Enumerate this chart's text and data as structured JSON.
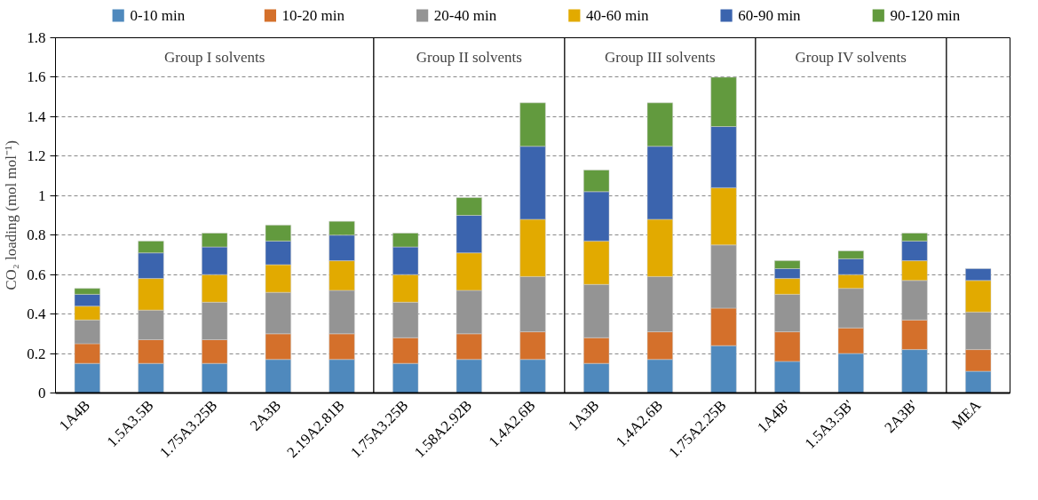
{
  "chart_data": {
    "type": "bar",
    "stacked": true,
    "ylabel": "CO₂ loading (mol mol⁻¹)",
    "categories": [
      "1A4B",
      "1.5A3.5B",
      "1.75A3.25B",
      "2A3B",
      "2.19A2.81B",
      "1.75A3.25B",
      "1.58A2.92B",
      "1.4A2.6B",
      "1A3B",
      "1.4A2.6B",
      "1.75A2.25B",
      "1A4B'",
      "1.5A3.5B'",
      "2A3B'",
      "MEA"
    ],
    "series": [
      {
        "name": "0-10 min",
        "color": "#4f89bd",
        "values": [
          0.15,
          0.15,
          0.15,
          0.17,
          0.17,
          0.15,
          0.17,
          0.17,
          0.15,
          0.17,
          0.24,
          0.16,
          0.2,
          0.22,
          0.11
        ]
      },
      {
        "name": "10-20 min",
        "color": "#d4702b",
        "values": [
          0.1,
          0.12,
          0.12,
          0.13,
          0.13,
          0.13,
          0.13,
          0.14,
          0.13,
          0.14,
          0.19,
          0.15,
          0.13,
          0.15,
          0.11
        ]
      },
      {
        "name": "20-40 min",
        "color": "#949494",
        "values": [
          0.12,
          0.15,
          0.19,
          0.21,
          0.22,
          0.18,
          0.22,
          0.28,
          0.27,
          0.28,
          0.32,
          0.19,
          0.2,
          0.2,
          0.19
        ]
      },
      {
        "name": "40-60 min",
        "color": "#e2aa00",
        "values": [
          0.07,
          0.16,
          0.14,
          0.14,
          0.15,
          0.14,
          0.19,
          0.29,
          0.22,
          0.29,
          0.29,
          0.08,
          0.07,
          0.1,
          0.16
        ]
      },
      {
        "name": "60-90 min",
        "color": "#3b64ae",
        "values": [
          0.06,
          0.13,
          0.14,
          0.12,
          0.13,
          0.14,
          0.19,
          0.37,
          0.25,
          0.37,
          0.31,
          0.05,
          0.08,
          0.1,
          0.06
        ]
      },
      {
        "name": "90-120 min",
        "color": "#629a3e",
        "values": [
          0.03,
          0.06,
          0.07,
          0.08,
          0.07,
          0.07,
          0.09,
          0.22,
          0.11,
          0.22,
          0.25,
          0.04,
          0.04,
          0.04,
          null
        ]
      }
    ],
    "ylim": [
      0,
      1.8
    ],
    "yticks": [
      0,
      0.2,
      0.4,
      0.6,
      0.8,
      1,
      1.2,
      1.4,
      1.6,
      1.8
    ],
    "grid": "y",
    "legend": "top",
    "annotations": [
      "Group I solvents",
      "Group II solvents",
      "Group III solvents",
      "Group IV solvents"
    ]
  }
}
